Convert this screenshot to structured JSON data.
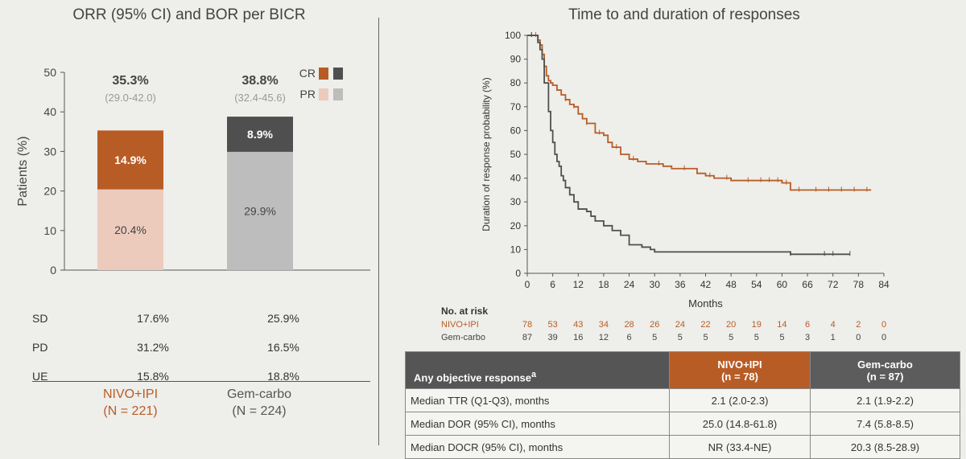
{
  "left_panel": {
    "title": "ORR (95% CI) and BOR per BICR",
    "bor_rows": [
      {
        "label": "SD",
        "nivo": "17.6%",
        "gem": "25.9%"
      },
      {
        "label": "PD",
        "nivo": "31.2%",
        "gem": "16.5%"
      },
      {
        "label": "UE",
        "nivo": "15.8%",
        "gem": "18.8%"
      }
    ],
    "arm1_name": "NIVO+IPI",
    "arm1_n": "(N = 221)",
    "arm2_name": "Gem-carbo",
    "arm2_n": "(N = 224)"
  },
  "right_panel": {
    "title": "Time to and duration of responses",
    "table": {
      "header": "Any objective response",
      "header_sup": "a",
      "col1": "NIVO+IPI",
      "col1_n": "(n = 78)",
      "col2": "Gem-carbo",
      "col2_n": "(n = 87)",
      "rows": [
        {
          "label": "Median TTR (Q1-Q3), months",
          "nivo": "2.1 (2.0-2.3)",
          "gem": "2.1 (1.9-2.2)"
        },
        {
          "label": "Median DOR (95% CI), months",
          "nivo": "25.0 (14.8-61.8)",
          "gem": "7.4 (5.8-8.5)"
        },
        {
          "label": "Median DOCR (95% CI), months",
          "nivo": "NR (33.4-NE)",
          "gem": "20.3 (8.5-28.9)"
        }
      ]
    }
  },
  "chart_data": [
    {
      "type": "bar",
      "ylabel": "Patients (%)",
      "ylim": [
        0,
        50
      ],
      "yticks": [
        0,
        10,
        20,
        30,
        40,
        50
      ],
      "categories": [
        "NIVO+IPI",
        "Gem-carbo"
      ],
      "series": [
        {
          "name": "PR",
          "values": [
            20.4,
            29.9
          ],
          "labels": [
            "20.4%",
            "29.9%"
          ],
          "colors": [
            "#eccbbd",
            "#bdbdbd"
          ]
        },
        {
          "name": "CR",
          "values": [
            14.9,
            8.9
          ],
          "labels": [
            "14.9%",
            "8.9%"
          ],
          "colors": [
            "#b85c26",
            "#4f4f4f"
          ]
        }
      ],
      "orr_labels": [
        "35.3%",
        "38.8%"
      ],
      "ci_labels": [
        "(29.0-42.0)",
        "(32.4-45.6)"
      ],
      "legend": [
        {
          "label": "CR",
          "colors": [
            "#b85c26",
            "#4f4f4f"
          ]
        },
        {
          "label": "PR",
          "colors": [
            "#eccbbd",
            "#bdbdbd"
          ]
        }
      ]
    },
    {
      "type": "line",
      "xlabel": "Months",
      "ylabel": "Duration of response probability (%)",
      "xlim": [
        0,
        84
      ],
      "ylim": [
        0,
        100
      ],
      "xticks": [
        0,
        6,
        12,
        18,
        24,
        30,
        36,
        42,
        48,
        54,
        60,
        66,
        72,
        78,
        84
      ],
      "yticks": [
        0,
        10,
        20,
        30,
        40,
        50,
        60,
        70,
        80,
        90,
        100
      ],
      "series": [
        {
          "name": "NIVO+IPI",
          "color": "#b85c26",
          "x": [
            0,
            1.5,
            2.5,
            3,
            3.5,
            4,
            4.5,
            5,
            5.5,
            6,
            7,
            8,
            9,
            10,
            11,
            12,
            13,
            14,
            16,
            18,
            19,
            20,
            22,
            24,
            26,
            28,
            30,
            32,
            34,
            36,
            38,
            40,
            42,
            44,
            46,
            48,
            50,
            54,
            58,
            60,
            62,
            66,
            70,
            74,
            78,
            81
          ],
          "y": [
            100,
            100,
            98,
            96,
            92,
            87,
            83,
            81,
            80,
            79,
            77,
            75,
            73,
            71,
            70,
            67,
            65,
            63,
            59,
            58,
            55,
            53,
            50,
            48,
            47,
            46,
            46,
            45,
            44,
            44,
            44,
            42,
            41,
            40,
            40,
            39,
            39,
            39,
            39,
            38,
            35,
            35,
            35,
            35,
            35,
            35
          ],
          "censor": [
            1,
            2,
            9,
            11,
            14,
            17,
            21,
            25,
            31,
            37,
            43,
            47,
            52,
            55,
            57,
            59,
            61,
            64,
            68,
            71,
            74,
            77,
            80
          ]
        },
        {
          "name": "Gem-carbo",
          "color": "#4f4f4f",
          "x": [
            0,
            1.5,
            2.5,
            3,
            3.5,
            4,
            5,
            5.5,
            6,
            6.5,
            7,
            7.5,
            8,
            8.5,
            9,
            10,
            11,
            12,
            14,
            15,
            16,
            18,
            20,
            22,
            24,
            27,
            29,
            30,
            36,
            48,
            60,
            62,
            70,
            76
          ],
          "y": [
            100,
            100,
            97,
            94,
            90,
            80,
            68,
            60,
            55,
            50,
            47,
            45,
            41,
            39,
            36,
            33,
            30,
            27,
            26,
            24,
            22,
            20,
            18,
            16,
            12,
            11,
            10,
            9,
            9,
            9,
            9,
            8,
            8,
            8
          ],
          "censor": [
            1,
            62,
            70,
            72,
            76
          ]
        }
      ],
      "at_risk": {
        "title": "No. at risk",
        "times": [
          0,
          6,
          12,
          18,
          24,
          30,
          36,
          42,
          48,
          54,
          60,
          66,
          72,
          78,
          84
        ],
        "rows": [
          {
            "name": "NIVO+IPI",
            "color": "#b85c26",
            "values": [
              "78",
              "53",
              "43",
              "34",
              "28",
              "26",
              "24",
              "22",
              "20",
              "19",
              "14",
              "6",
              "4",
              "2",
              "0"
            ]
          },
          {
            "name": "Gem-carbo",
            "color": "#444444",
            "values": [
              "87",
              "39",
              "16",
              "12",
              "6",
              "5",
              "5",
              "5",
              "5",
              "5",
              "5",
              "3",
              "1",
              "0",
              "0"
            ]
          }
        ]
      }
    }
  ]
}
